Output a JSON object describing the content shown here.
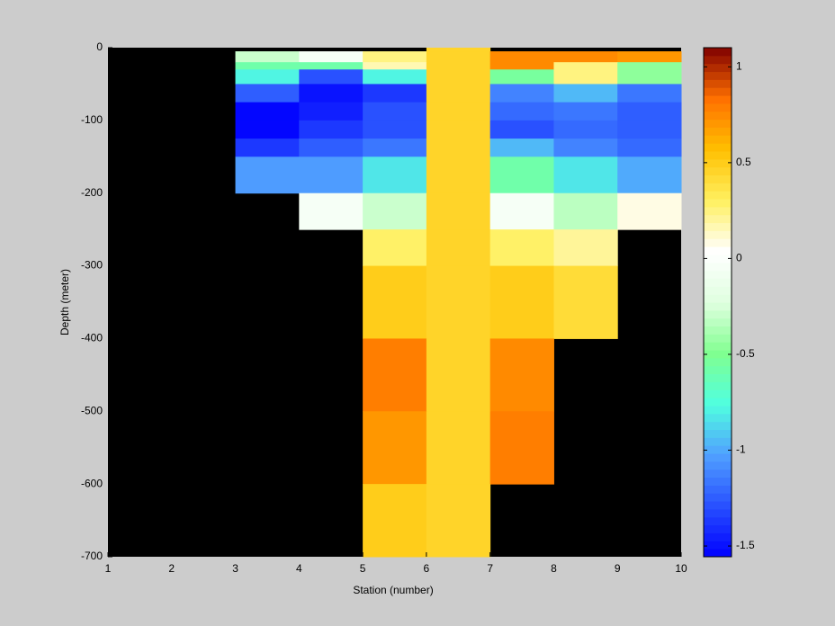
{
  "chart_data": {
    "type": "heatmap",
    "x_label": "Station (number)",
    "y_label": "Depth (meter)",
    "x": [
      1,
      2,
      3,
      4,
      5,
      6,
      7,
      8,
      9,
      10
    ],
    "y": [
      0,
      -5,
      -20,
      -30,
      -50,
      -75,
      -100,
      -125,
      -150,
      -200,
      -250,
      -300,
      -400,
      -500,
      -600,
      -700
    ],
    "values": [
      [
        null,
        null,
        null,
        null,
        null,
        0.47,
        null,
        null,
        null
      ],
      [
        null,
        null,
        -0.3,
        -0.05,
        0.25,
        0.47,
        0.75,
        0.75,
        0.7
      ],
      [
        null,
        null,
        -0.6,
        -0.6,
        0.15,
        0.47,
        0.75,
        0.25,
        -0.45
      ],
      [
        null,
        null,
        -0.8,
        -1.3,
        -0.8,
        0.47,
        -0.55,
        0.25,
        -0.45
      ],
      [
        null,
        null,
        -1.25,
        -1.5,
        -1.35,
        0.47,
        -1.1,
        -0.95,
        -1.15
      ],
      [
        null,
        null,
        -1.55,
        -1.45,
        -1.3,
        0.47,
        -1.2,
        -1.15,
        -1.25
      ],
      [
        null,
        null,
        -1.55,
        -1.35,
        -1.3,
        0.47,
        -1.3,
        -1.2,
        -1.25
      ],
      [
        null,
        null,
        -1.35,
        -1.25,
        -1.15,
        0.47,
        -0.95,
        -1.1,
        -1.2
      ],
      [
        null,
        null,
        -1.05,
        -1.05,
        -0.85,
        0.47,
        -0.6,
        -0.85,
        -1.0
      ],
      [
        null,
        null,
        null,
        -0.05,
        -0.3,
        0.47,
        -0.05,
        -0.35,
        0.1
      ],
      [
        null,
        null,
        null,
        null,
        0.3,
        0.47,
        0.3,
        0.2,
        null
      ],
      [
        null,
        null,
        null,
        null,
        0.5,
        0.47,
        0.5,
        0.4,
        null
      ],
      [
        null,
        null,
        null,
        null,
        0.8,
        0.47,
        0.75,
        null,
        null
      ],
      [
        null,
        null,
        null,
        null,
        0.7,
        0.47,
        0.8,
        null,
        null
      ],
      [
        null,
        null,
        null,
        null,
        0.5,
        0.47,
        null,
        null,
        null
      ]
    ],
    "xlim": [
      1,
      10
    ],
    "xticks": [
      1,
      2,
      3,
      4,
      5,
      6,
      7,
      8,
      9,
      10
    ],
    "ylim": [
      -700,
      0
    ],
    "yticks": [
      0,
      -100,
      -200,
      -300,
      -400,
      -500,
      -600,
      -700
    ],
    "zlim": [
      -1.556,
      1.1
    ],
    "zticks": [
      1,
      0.5,
      0,
      -0.5,
      -1,
      -1.5
    ],
    "colormap": [
      "#0000ff",
      "#2850ff",
      "#50a0ff",
      "#50ffe0",
      "#80ff90",
      "#e0ffe0",
      "#ffffff",
      "#fff060",
      "#ffc000",
      "#ff7000",
      "#800000"
    ],
    "background": "#000000"
  }
}
